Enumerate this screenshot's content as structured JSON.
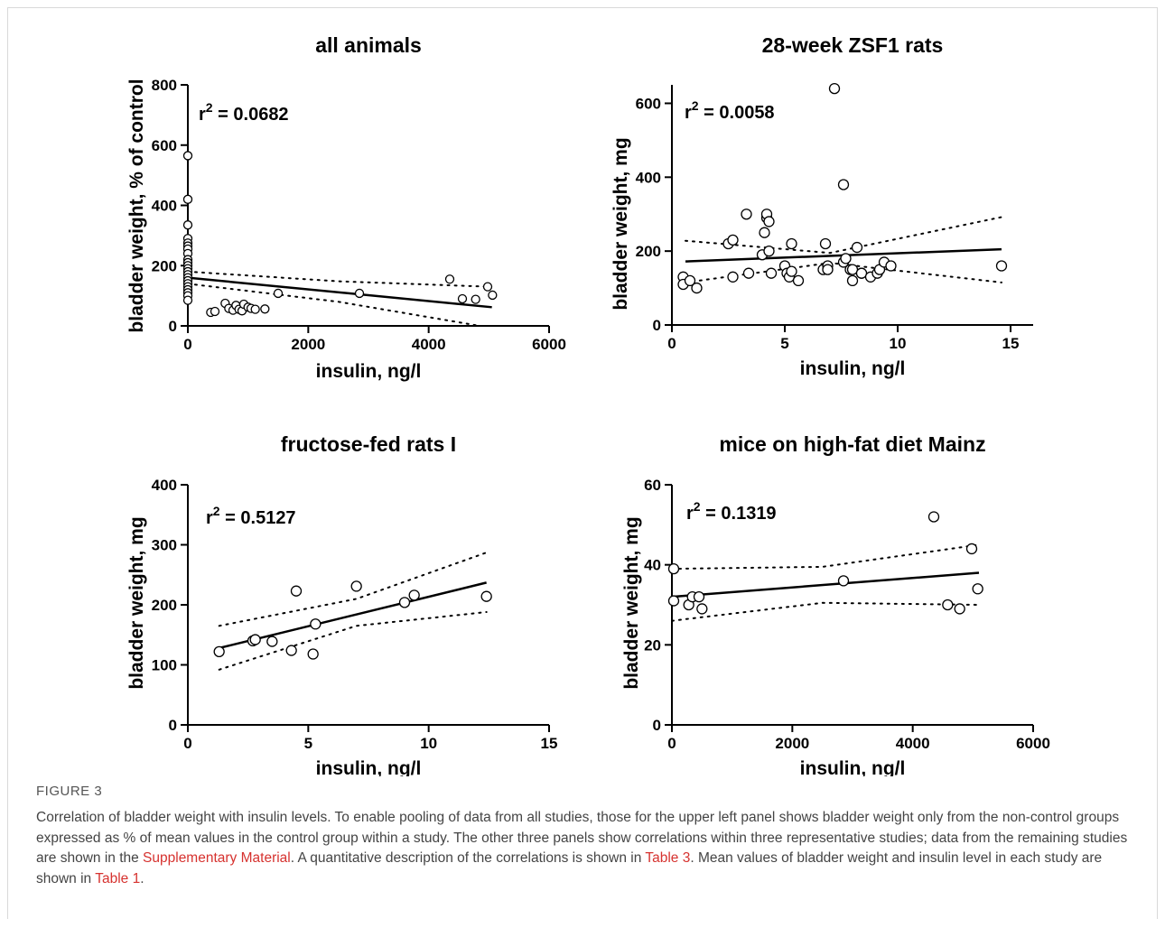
{
  "figure_label": "FIGURE 3",
  "caption": {
    "part1": "Correlation of bladder weight with insulin levels. To enable pooling of data from all studies, those for the upper left panel shows bladder weight only from the non-control groups expressed as % of mean values in the control group within a study. The other three panels show correlations within three representative studies; data from the remaining studies are shown in the ",
    "link1": "Supplementary Material",
    "part2": ". A quantitative description of the correlations is shown in ",
    "link2": "Table 3",
    "part3": ". Mean values of bladder weight and insulin level in each study are shown in ",
    "link3": "Table 1",
    "part4": "."
  },
  "chart_data": [
    {
      "type": "scatter",
      "title": "all animals",
      "xlabel": "insulin, ng/l",
      "ylabel": "bladder weight, % of control",
      "xlim": [
        0,
        6000
      ],
      "ylim": [
        0,
        800
      ],
      "xticks": [
        0,
        2000,
        4000,
        6000
      ],
      "yticks": [
        0,
        200,
        400,
        600,
        800
      ],
      "r2_label": "r",
      "r2_value": " = 0.0682",
      "points": [
        [
          0,
          565
        ],
        [
          0,
          420
        ],
        [
          0,
          335
        ],
        [
          0,
          290
        ],
        [
          0,
          275
        ],
        [
          0,
          265
        ],
        [
          0,
          255
        ],
        [
          0,
          240
        ],
        [
          0,
          220
        ],
        [
          0,
          210
        ],
        [
          0,
          200
        ],
        [
          0,
          190
        ],
        [
          0,
          180
        ],
        [
          0,
          170
        ],
        [
          0,
          160
        ],
        [
          0,
          150
        ],
        [
          0,
          140
        ],
        [
          0,
          130
        ],
        [
          0,
          120
        ],
        [
          0,
          110
        ],
        [
          0,
          100
        ],
        [
          0,
          85
        ],
        [
          380,
          45
        ],
        [
          450,
          48
        ],
        [
          620,
          75
        ],
        [
          680,
          58
        ],
        [
          750,
          52
        ],
        [
          800,
          68
        ],
        [
          850,
          55
        ],
        [
          900,
          50
        ],
        [
          930,
          72
        ],
        [
          1000,
          62
        ],
        [
          1050,
          58
        ],
        [
          1120,
          55
        ],
        [
          1280,
          56
        ],
        [
          1500,
          108
        ],
        [
          2850,
          108
        ],
        [
          4350,
          155
        ],
        [
          4560,
          90
        ],
        [
          4780,
          88
        ],
        [
          4980,
          130
        ],
        [
          5060,
          102
        ]
      ],
      "fit": [
        [
          0,
          160
        ],
        [
          5050,
          62
        ]
      ],
      "ci_upper": [
        [
          0,
          180
        ],
        [
          2500,
          148
        ],
        [
          5000,
          130
        ]
      ],
      "ci_lower": [
        [
          0,
          140
        ],
        [
          2500,
          80
        ],
        [
          4850,
          0
        ]
      ]
    },
    {
      "type": "scatter",
      "title": "28-week ZSF1 rats",
      "xlabel": "insulin, ng/l",
      "ylabel": "bladder weight, mg",
      "xlim": [
        0,
        16
      ],
      "ylim": [
        0,
        650
      ],
      "xticks": [
        0,
        5,
        10,
        15
      ],
      "yticks": [
        0,
        200,
        400,
        600
      ],
      "r2_label": "r",
      "r2_value": " = 0.0058",
      "points": [
        [
          0.5,
          130
        ],
        [
          0.5,
          110
        ],
        [
          0.8,
          120
        ],
        [
          1.1,
          100
        ],
        [
          2.5,
          220
        ],
        [
          2.7,
          230
        ],
        [
          2.7,
          130
        ],
        [
          3.3,
          300
        ],
        [
          3.4,
          140
        ],
        [
          4.0,
          190
        ],
        [
          4.1,
          250
        ],
        [
          4.2,
          290
        ],
        [
          4.2,
          300
        ],
        [
          4.3,
          280
        ],
        [
          4.3,
          200
        ],
        [
          4.4,
          140
        ],
        [
          5.0,
          160
        ],
        [
          5.1,
          140
        ],
        [
          5.2,
          130
        ],
        [
          5.3,
          145
        ],
        [
          5.3,
          220
        ],
        [
          5.6,
          120
        ],
        [
          6.7,
          150
        ],
        [
          6.8,
          220
        ],
        [
          6.9,
          160
        ],
        [
          6.9,
          150
        ],
        [
          7.2,
          640
        ],
        [
          7.6,
          170
        ],
        [
          7.6,
          380
        ],
        [
          7.7,
          180
        ],
        [
          7.9,
          150
        ],
        [
          8.0,
          120
        ],
        [
          8.0,
          150
        ],
        [
          8.2,
          210
        ],
        [
          8.4,
          140
        ],
        [
          8.4,
          140
        ],
        [
          8.8,
          130
        ],
        [
          9.1,
          140
        ],
        [
          9.2,
          150
        ],
        [
          9.4,
          170
        ],
        [
          9.7,
          160
        ],
        [
          14.6,
          160
        ]
      ],
      "fit": [
        [
          0.6,
          172
        ],
        [
          14.6,
          205
        ]
      ],
      "ci_upper": [
        [
          0.6,
          228
        ],
        [
          7,
          195
        ],
        [
          14.6,
          292
        ]
      ],
      "ci_lower": [
        [
          0.6,
          115
        ],
        [
          7,
          168
        ],
        [
          14.6,
          115
        ]
      ]
    },
    {
      "type": "scatter",
      "title": "fructose-fed rats I",
      "xlabel": "insulin, ng/l",
      "ylabel": "bladder weight, mg",
      "xlim": [
        0,
        15
      ],
      "ylim": [
        0,
        400
      ],
      "xticks": [
        0,
        5,
        10,
        15
      ],
      "yticks": [
        0,
        100,
        200,
        300,
        400
      ],
      "r2_label": "r",
      "r2_value": " = 0.5127",
      "points": [
        [
          1.3,
          122
        ],
        [
          2.7,
          140
        ],
        [
          2.8,
          142
        ],
        [
          3.5,
          139
        ],
        [
          4.3,
          124
        ],
        [
          4.5,
          223
        ],
        [
          5.2,
          118
        ],
        [
          5.3,
          168
        ],
        [
          7.0,
          231
        ],
        [
          9.0,
          204
        ],
        [
          9.4,
          216
        ],
        [
          12.4,
          214
        ]
      ],
      "fit": [
        [
          1.3,
          128
        ],
        [
          12.4,
          237
        ]
      ],
      "ci_upper": [
        [
          1.3,
          165
        ],
        [
          7,
          210
        ],
        [
          12.4,
          287
        ]
      ],
      "ci_lower": [
        [
          1.3,
          92
        ],
        [
          7,
          165
        ],
        [
          12.4,
          188
        ]
      ]
    },
    {
      "type": "scatter",
      "title": "mice on high-fat diet Mainz",
      "xlabel": "insulin, ng/l",
      "ylabel": "bladder weight, mg",
      "xlim": [
        0,
        6000
      ],
      "ylim": [
        0,
        60
      ],
      "xticks": [
        0,
        2000,
        4000,
        6000
      ],
      "yticks": [
        0,
        20,
        40,
        60
      ],
      "r2_label": "r",
      "r2_value": " = 0.1319",
      "points": [
        [
          30,
          39
        ],
        [
          30,
          31
        ],
        [
          280,
          30
        ],
        [
          340,
          32
        ],
        [
          450,
          32
        ],
        [
          500,
          29
        ],
        [
          2850,
          36
        ],
        [
          4350,
          52
        ],
        [
          4580,
          30
        ],
        [
          4780,
          29
        ],
        [
          4980,
          44
        ],
        [
          5080,
          34
        ]
      ],
      "fit": [
        [
          0,
          32
        ],
        [
          5100,
          38
        ]
      ],
      "ci_upper": [
        [
          0,
          39
        ],
        [
          2500,
          39.5
        ],
        [
          5100,
          45
        ]
      ],
      "ci_lower": [
        [
          0,
          26
        ],
        [
          2500,
          30.5
        ],
        [
          5100,
          30
        ]
      ]
    }
  ]
}
